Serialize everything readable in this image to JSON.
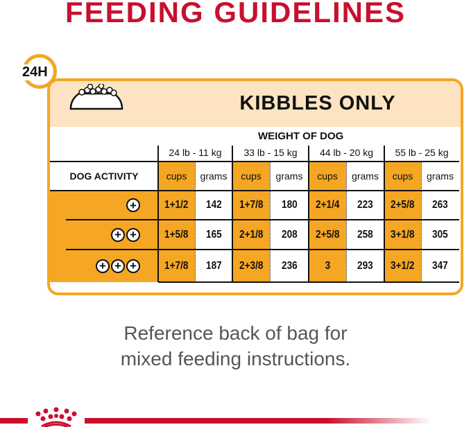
{
  "title": "FEEDING GUIDELINES",
  "badge": "24H",
  "section_title": "KIBBLES ONLY",
  "weight_label": "WEIGHT OF DOG",
  "activity_label": "DOG ACTIVITY",
  "weights": [
    "24 lb - 11 kg",
    "33 lb - 15 kg",
    "44 lb - 20 kg",
    "55 lb - 25 kg"
  ],
  "units": {
    "cups": "cups",
    "grams": "grams"
  },
  "rows": [
    {
      "activity_level": 1,
      "values": [
        [
          "1+1/2",
          "142"
        ],
        [
          "1+7/8",
          "180"
        ],
        [
          "2+1/4",
          "223"
        ],
        [
          "2+5/8",
          "263"
        ]
      ]
    },
    {
      "activity_level": 2,
      "values": [
        [
          "1+5/8",
          "165"
        ],
        [
          "2+1/8",
          "208"
        ],
        [
          "2+5/8",
          "258"
        ],
        [
          "3+1/8",
          "305"
        ]
      ]
    },
    {
      "activity_level": 3,
      "values": [
        [
          "1+7/8",
          "187"
        ],
        [
          "2+3/8",
          "236"
        ],
        [
          "3",
          "293"
        ],
        [
          "3+1/2",
          "347"
        ]
      ]
    }
  ],
  "note_lines": [
    "Reference back of bag for",
    "mixed feeding instructions."
  ],
  "colors": {
    "brand_red": "#c8102e",
    "accent_orange": "#f5a623",
    "band_peach": "#fde3c2"
  }
}
